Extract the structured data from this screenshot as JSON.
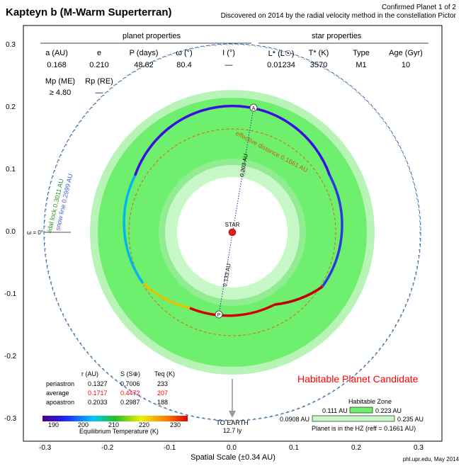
{
  "title": "Kapteyn b (M-Warm Superterran)",
  "confirmed_text": "Confirmed Planet 1 of 2",
  "discovered_text": "Discovered on 2014 by the radial velocity method in the constellation Pictor",
  "planet_properties": {
    "header": "planet properties",
    "columns": [
      {
        "label": "a (AU)",
        "value": "0.168"
      },
      {
        "label": "e",
        "value": "0.210"
      },
      {
        "label": "P (days)",
        "value": "48.62"
      },
      {
        "label": "ω (°)",
        "value": "80.4"
      },
      {
        "label": "I (°)",
        "value": "—"
      }
    ],
    "mass_label": "Mp (ME)",
    "mass_value": "≥ 4.80",
    "radius_label": "Rp (RE)",
    "radius_value": "—"
  },
  "star_properties": {
    "header": "star properties",
    "columns": [
      {
        "label": "L* (L☉)",
        "value": "0.01234"
      },
      {
        "label": "T* (K)",
        "value": "3570"
      },
      {
        "label": "Type",
        "value": "M1"
      },
      {
        "label": "Age (Gyr)",
        "value": "10"
      }
    ]
  },
  "diagram": {
    "star_label": "STAR",
    "apoastron_marker": "A",
    "periastron_marker": "P",
    "apo_distance_label": "0.203 AU",
    "peri_distance_label": "0.133 AU",
    "effective_distance_label": "effective distance 0.1661 AU",
    "tidal_lock_label": "tidal lock 0.3011 AU",
    "snow_line_label": "snow line 0.2999 AU",
    "omega_label": "ω = 0°",
    "to_earth_label": "TO EARTH",
    "earth_distance": "12.7 ly",
    "habitable_candidate": "Habitable Planet Candidate",
    "colors": {
      "hz_outer": "#b8f4b8",
      "hz_optimistic": "#90ee90",
      "hz_conservative": "#6ef06e",
      "star": "#e02020",
      "tidal_lock": "#2a8f2a",
      "snow_line": "#3a5fcd",
      "effective": "#e06020"
    },
    "radii_au": {
      "outer_light": 0.235,
      "conservative_outer": 0.223,
      "conservative_inner": 0.111,
      "optimistic_inner": 0.0908,
      "tidal_lock": 0.3011,
      "snow_line": 0.2999,
      "effective": 0.1661
    }
  },
  "axes": {
    "x_ticks": [
      "-0.3",
      "-0.2",
      "-0.1",
      "0.0",
      "0.1",
      "0.2",
      "0.3"
    ],
    "y_ticks": [
      "0.3",
      "0.2",
      "0.1",
      "0.0",
      "-0.1",
      "-0.2",
      "-0.3"
    ],
    "xlabel": "Spatial Scale (±0.34 AU)"
  },
  "orbit_table": {
    "headers": [
      "r (AU)",
      "S (S⊕)",
      "Teq (K)"
    ],
    "rows": [
      {
        "name": "periastron",
        "r": "0.1327",
        "s": "0.7006",
        "t": "233",
        "highlight": false
      },
      {
        "name": "average",
        "r": "0.1717",
        "s": "0.4472",
        "t": "207",
        "highlight": true
      },
      {
        "name": "apoastron",
        "r": "0.2033",
        "s": "0.2987",
        "t": "188",
        "highlight": false
      }
    ]
  },
  "temp_scale": {
    "ticks": [
      "190",
      "200",
      "210",
      "220",
      "230"
    ],
    "label": "Equilibrium Temperature (K)"
  },
  "habitable_zone_legend": {
    "title": "Habitable Zone",
    "conservative_inner": "0.111 AU",
    "conservative_outer": "0.223 AU",
    "optimistic_inner": "0.0908 AU",
    "optimistic_outer": "0.235 AU",
    "status": "Planet is in the HZ (reff = 0.1661 AU)"
  },
  "credit": "phl.upr.edu, May 2014"
}
